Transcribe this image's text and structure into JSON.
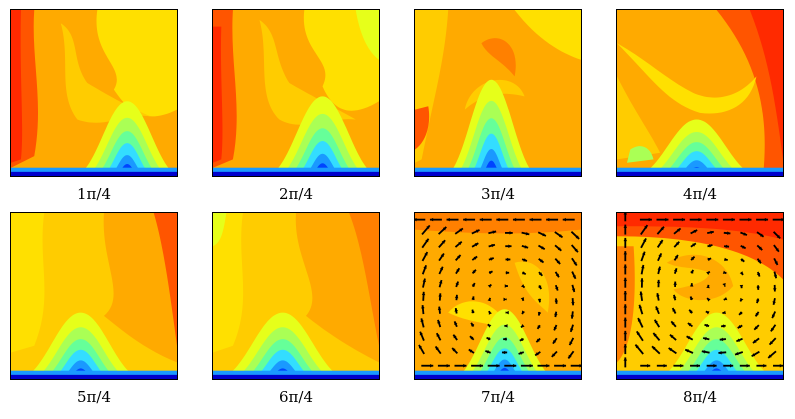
{
  "panels": [
    {
      "label": "1π/4",
      "variant": "a",
      "arrows": false
    },
    {
      "label": "2π/4",
      "variant": "b",
      "arrows": false
    },
    {
      "label": "3π/4",
      "variant": "c",
      "arrows": false
    },
    {
      "label": "4π/4",
      "variant": "d",
      "arrows": false
    },
    {
      "label": "5π/4",
      "variant": "e",
      "arrows": false
    },
    {
      "label": "6π/4",
      "variant": "f",
      "arrows": false
    },
    {
      "label": "7π/4",
      "variant": "g",
      "arrows": true
    },
    {
      "label": "8π/4",
      "variant": "h",
      "arrows": true
    }
  ],
  "colormap": {
    "red": "#ff2a00",
    "red_orange": "#ff5500",
    "orange_dark": "#ff8000",
    "orange": "#ffaa00",
    "yellow_orange": "#ffcc00",
    "yellow": "#ffe000",
    "yellow_green": "#e6ff1a",
    "light_green": "#aaff55",
    "green": "#66ff99",
    "cyan": "#33ddff",
    "light_blue": "#1a99ff",
    "blue": "#0044ff",
    "dark_blue": "#0000cc"
  }
}
